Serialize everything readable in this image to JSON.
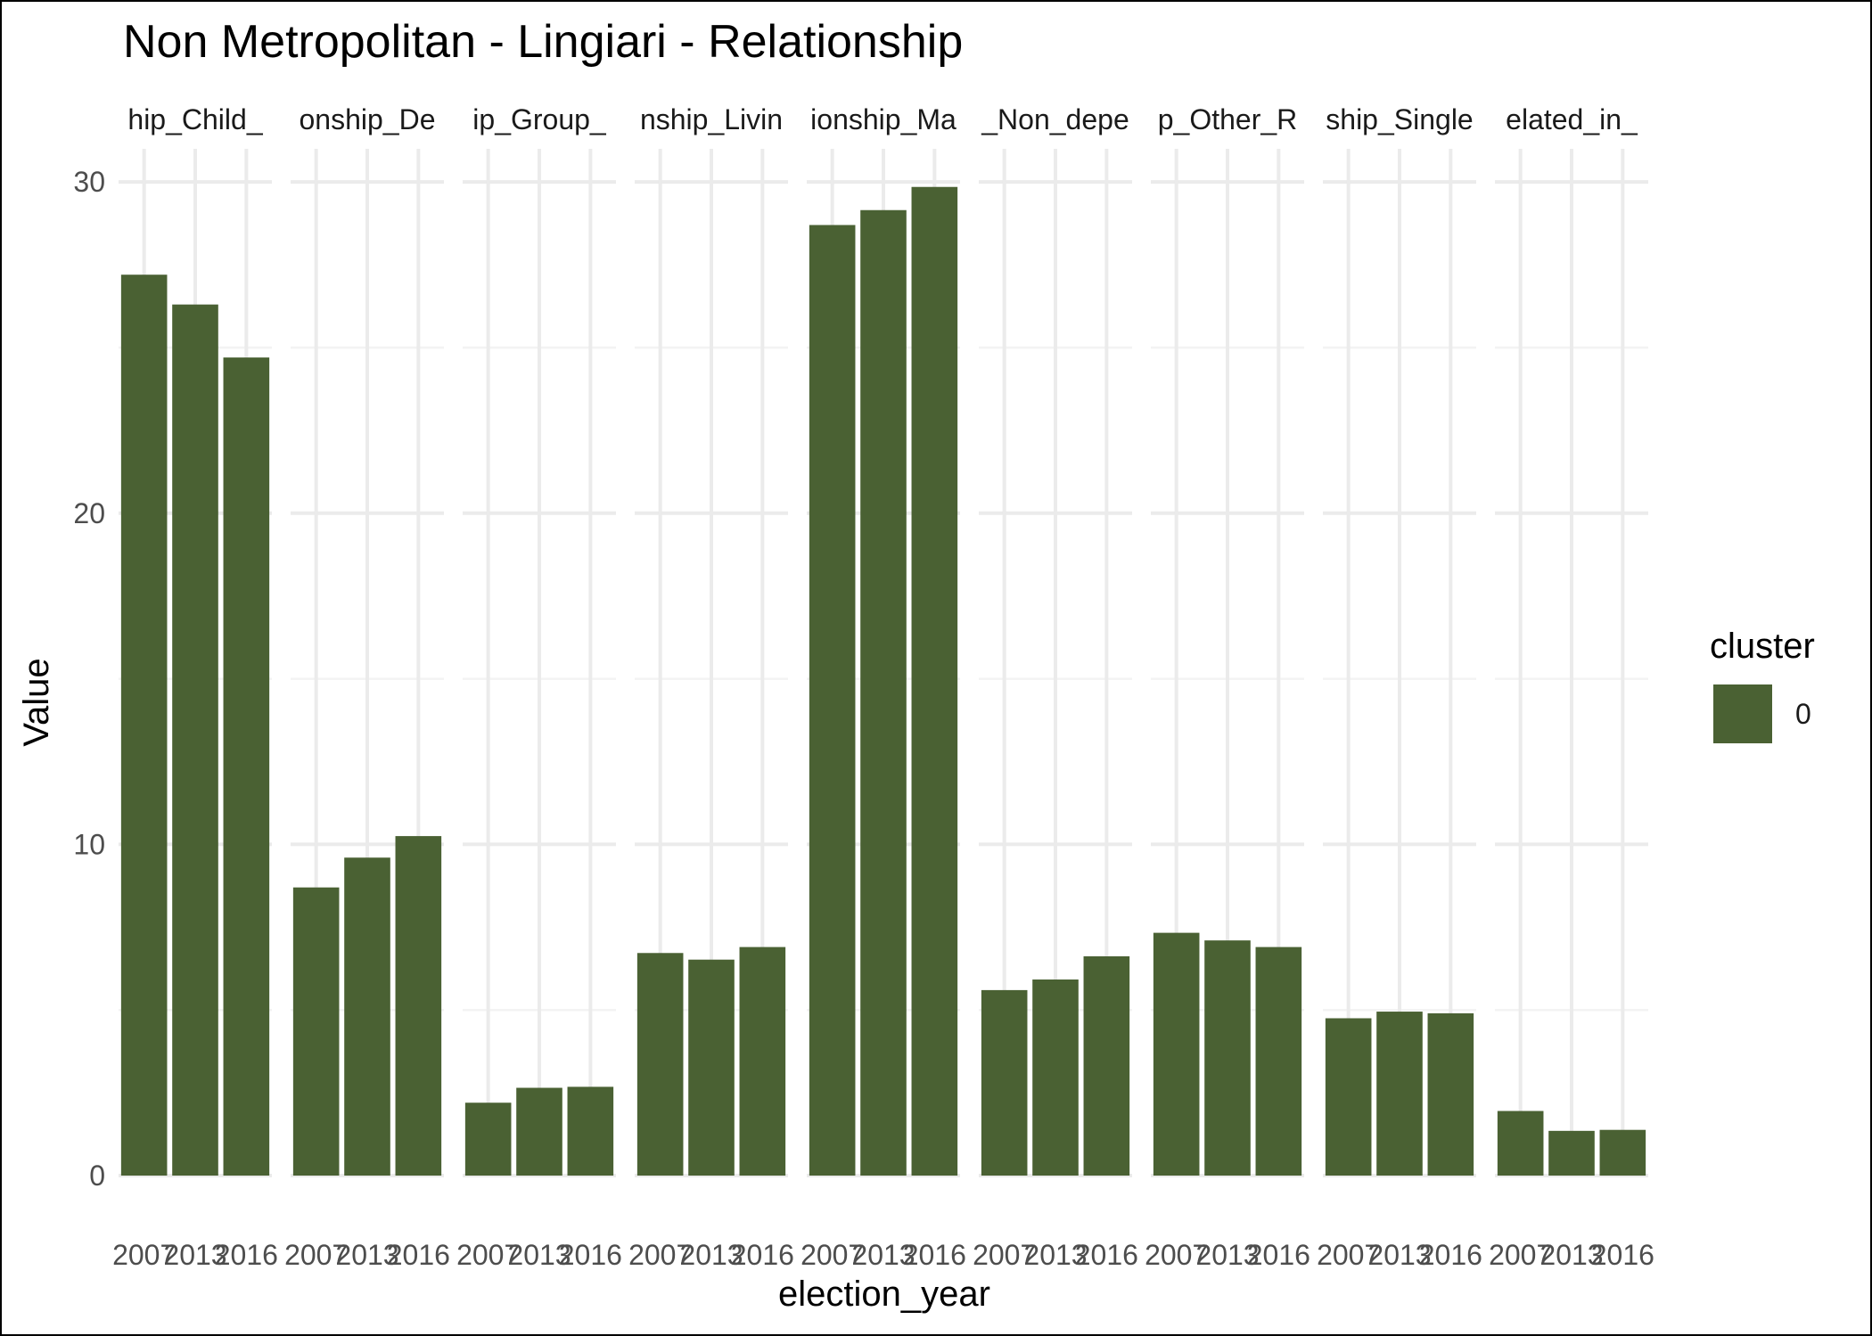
{
  "chart_data": {
    "type": "bar",
    "title": "Non Metropolitan - Lingiari - Relationship",
    "xlabel": "election_year",
    "ylabel": "Value",
    "ylim": [
      0,
      31
    ],
    "y_ticks": [
      0,
      10,
      20,
      30
    ],
    "grid": true,
    "facets": [
      "Relationship_Child_",
      "Relationship_De",
      "Relationship_Group_",
      "Relationship_Living",
      "Relationship_Ma",
      "Relationship_Non_depe",
      "Relationship_Other_R",
      "Relationship_Single",
      "Relationship_Unrelated_in_"
    ],
    "facet_strip_labels": [
      "hip_Child_",
      "onship_De",
      "ip_Group_",
      "nship_Livin",
      "ionship_Ma",
      "_Non_depe",
      "p_Other_R",
      "ship_Single",
      "elated_in_"
    ],
    "categories": [
      "2007",
      "2013",
      "2016"
    ],
    "x_tick_labels": [
      "2007",
      "2013",
      "2016"
    ],
    "series": [
      {
        "name": "0",
        "color": "#4a6133",
        "values": [
          [
            27.2,
            26.3,
            24.7
          ],
          [
            8.7,
            9.6,
            10.25
          ],
          [
            2.2,
            2.65,
            2.68
          ],
          [
            6.72,
            6.52,
            6.9
          ],
          [
            28.7,
            29.15,
            29.85
          ],
          [
            5.6,
            5.92,
            6.62
          ],
          [
            7.33,
            7.1,
            6.9
          ],
          [
            4.75,
            4.95,
            4.9
          ],
          [
            1.95,
            1.35,
            1.38
          ]
        ]
      }
    ],
    "legend": {
      "title": "cluster",
      "position": "right",
      "entries": [
        {
          "label": "0",
          "color": "#4a6133"
        }
      ]
    }
  }
}
